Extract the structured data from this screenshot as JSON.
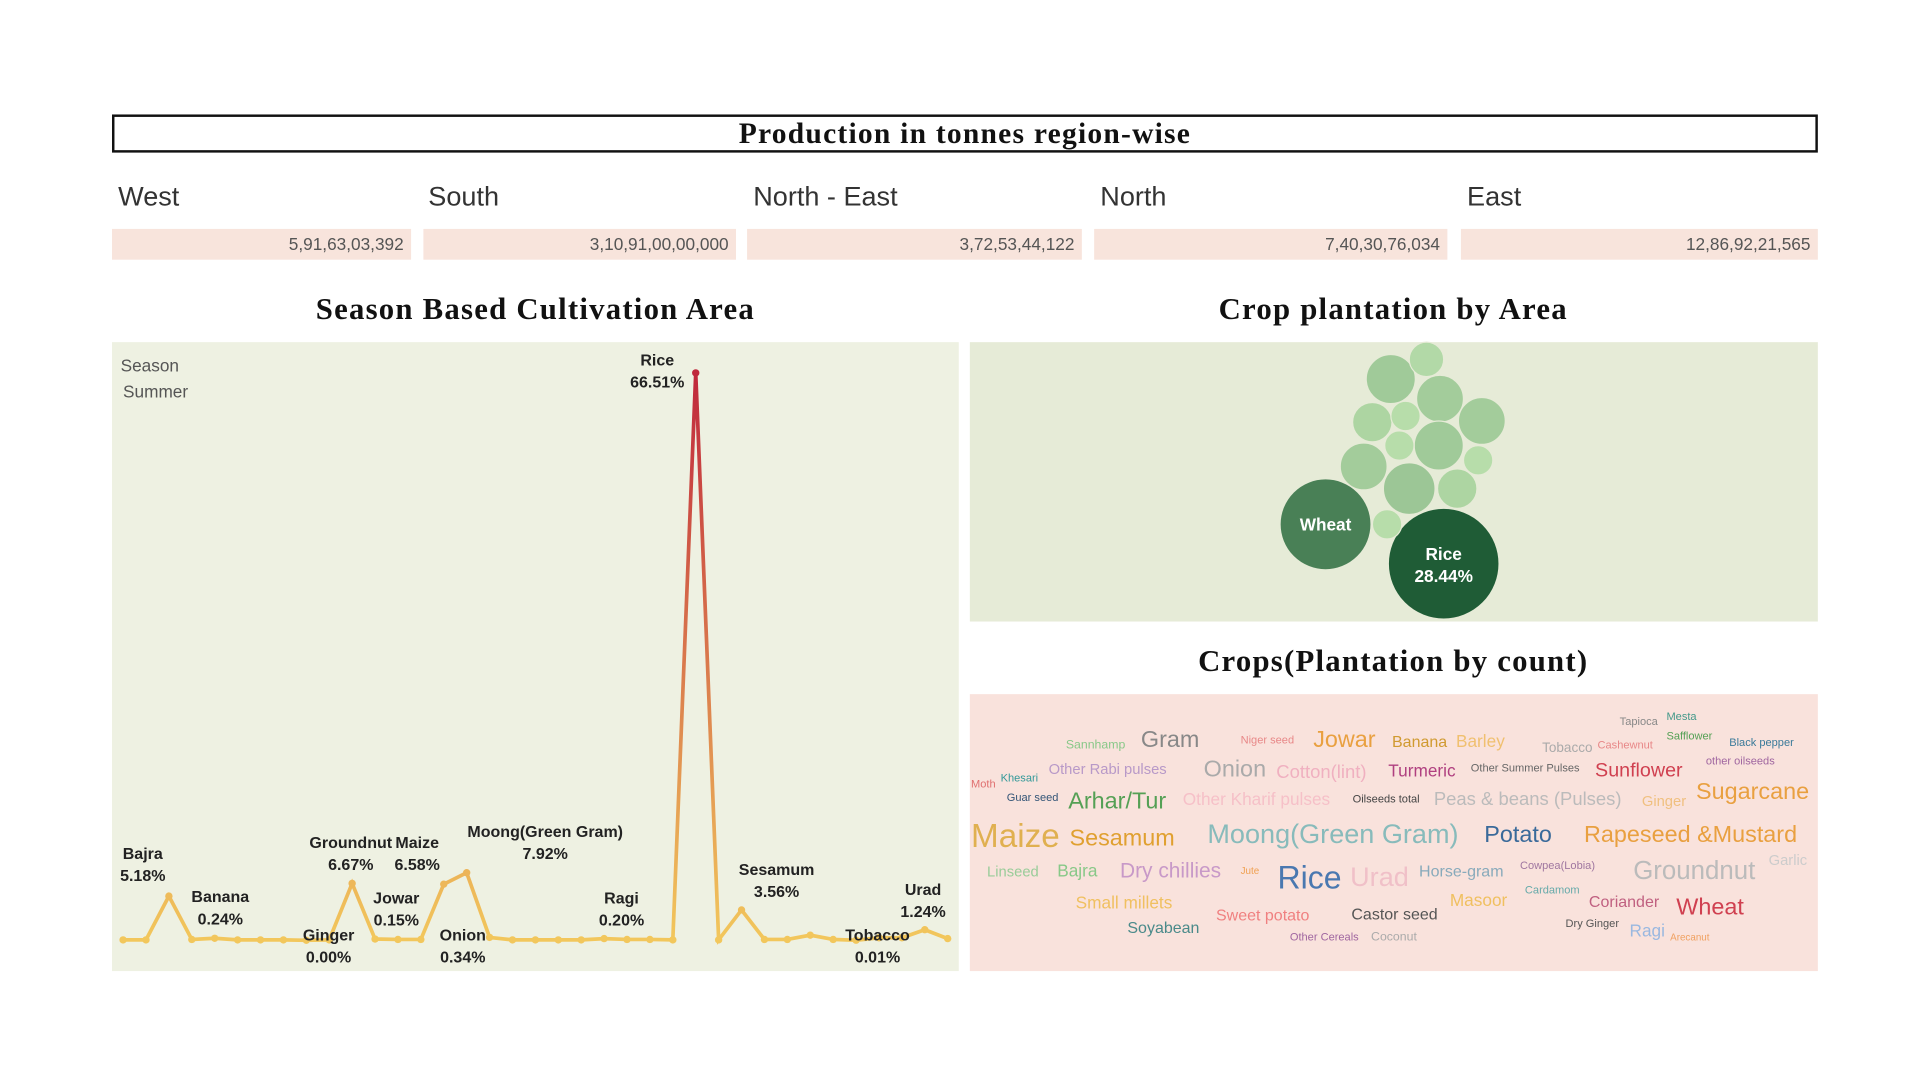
{
  "region_production": {
    "title": "Production in tonnes region-wise",
    "regions": [
      {
        "name": "West",
        "value": "5,91,63,03,392"
      },
      {
        "name": "South",
        "value": "3,10,91,00,00,000"
      },
      {
        "name": "North - East",
        "value": "3,72,53,44,122"
      },
      {
        "name": "North",
        "value": "7,40,30,76,034"
      },
      {
        "name": "East",
        "value": "12,86,92,21,565"
      }
    ]
  },
  "chart_data": [
    {
      "type": "line",
      "title": "Season Based Cultivation Area",
      "filter_label": "Season",
      "filter_value": "Summer",
      "categories": [
        null,
        null,
        "Bajra",
        null,
        "Banana",
        null,
        null,
        null,
        "Ginger",
        null,
        "Groundnut",
        "Jowar",
        null,
        null,
        "Maize",
        "Moong(Green Gram)",
        "Onion",
        null,
        null,
        null,
        null,
        "Ragi",
        null,
        null,
        null,
        "Rice",
        null,
        "Sesamum",
        null,
        null,
        null,
        null,
        "Tobacco",
        null,
        null,
        "Urad",
        null
      ],
      "values": [
        0.05,
        0.05,
        5.18,
        0.1,
        0.24,
        0.05,
        0.05,
        0.05,
        0.0,
        0.05,
        6.67,
        0.15,
        0.1,
        0.1,
        6.58,
        7.92,
        0.34,
        0.05,
        0.05,
        0.05,
        0.05,
        0.2,
        0.1,
        0.1,
        0.05,
        66.51,
        0.05,
        3.56,
        0.1,
        0.1,
        0.6,
        0.1,
        0.01,
        0.3,
        0.3,
        1.24,
        0.2
      ],
      "value_labels": [
        null,
        null,
        "5.18%",
        null,
        "0.24%",
        null,
        null,
        null,
        "0.00%",
        null,
        "6.67%",
        "0.15%",
        null,
        null,
        "6.58%",
        "7.92%",
        "0.34%",
        null,
        null,
        null,
        null,
        "0.20%",
        null,
        null,
        null,
        "66.51%",
        null,
        "3.56%",
        null,
        null,
        null,
        null,
        "0.01%",
        null,
        null,
        "1.24%",
        null
      ],
      "color_low": "#f2c75c",
      "color_high": "#c0283c"
    },
    {
      "type": "bubble",
      "title": "Crop plantation by Area",
      "categories": [
        "Rice",
        "Wheat",
        null,
        null,
        null,
        null,
        null,
        null,
        null,
        null,
        null,
        null,
        null,
        null,
        null
      ],
      "values": [
        28.44,
        19.2,
        5.6,
        2.75,
        5.1,
        5.1,
        3.6,
        2.0,
        5.6,
        5.1,
        2.0,
        6.2,
        3.6,
        2.0,
        2.0
      ],
      "value_labels": [
        "28.44%",
        null,
        null,
        null,
        null,
        null,
        null,
        null,
        null,
        null,
        null,
        null,
        null,
        null,
        null
      ],
      "color_low": "#c4e8b4",
      "color_high": "#1f5c36"
    }
  ],
  "word_cloud": {
    "title": "Crops(Plantation by count)",
    "words": [
      {
        "text": "Tapioca",
        "color": "#888888"
      },
      {
        "text": "Mesta",
        "color": "#44998a"
      },
      {
        "text": "Safflower",
        "color": "#55a055"
      },
      {
        "text": "Black pepper",
        "color": "#3a7a9a"
      },
      {
        "text": "Sannhamp",
        "color": "#88c888"
      },
      {
        "text": "Gram",
        "color": "#888888"
      },
      {
        "text": "Niger seed",
        "color": "#e88888"
      },
      {
        "text": "Jowar",
        "color": "#e9a040"
      },
      {
        "text": "Banana",
        "color": "#d09a30"
      },
      {
        "text": "Barley",
        "color": "#f0c070"
      },
      {
        "text": "Tobacco",
        "color": "#aaaaaa"
      },
      {
        "text": "Cashewnut",
        "color": "#e88888"
      },
      {
        "text": "other oilseeds",
        "color": "#a066a0"
      },
      {
        "text": "Moth",
        "color": "#e07070"
      },
      {
        "text": "Khesari",
        "color": "#339999"
      },
      {
        "text": "Other Rabi pulses",
        "color": "#b899c8"
      },
      {
        "text": "Onion",
        "color": "#aaaaaa"
      },
      {
        "text": "Cotton(lint)",
        "color": "#f0b0c0"
      },
      {
        "text": "Turmeric",
        "color": "#b04080"
      },
      {
        "text": "Other Summer Pulses",
        "color": "#666666"
      },
      {
        "text": "Sunflower",
        "color": "#d04050"
      },
      {
        "text": "Sugarcane",
        "color": "#e9a040"
      },
      {
        "text": "Guar seed",
        "color": "#335577"
      },
      {
        "text": "Arhar/Tur",
        "color": "#55a055"
      },
      {
        "text": "Other Kharif pulses",
        "color": "#f6c0c8"
      },
      {
        "text": "Oilseeds total",
        "color": "#444444"
      },
      {
        "text": "Peas & beans (Pulses)",
        "color": "#bbbbbb"
      },
      {
        "text": "Ginger",
        "color": "#f0c080"
      },
      {
        "text": "Maize",
        "color": "#e0b050"
      },
      {
        "text": "Sesamum",
        "color": "#e0a030"
      },
      {
        "text": "Moong(Green Gram)",
        "color": "#88bbbb"
      },
      {
        "text": "Potato",
        "color": "#3a6a9a"
      },
      {
        "text": "Rapeseed &Mustard",
        "color": "#e9a040"
      },
      {
        "text": "Linseed",
        "color": "#99cc99"
      },
      {
        "text": "Bajra",
        "color": "#88c888"
      },
      {
        "text": "Dry chillies",
        "color": "#c899c8"
      },
      {
        "text": "Jute",
        "color": "#f0a050"
      },
      {
        "text": "Rice",
        "color": "#4a78b0"
      },
      {
        "text": "Urad",
        "color": "#f0c0c8"
      },
      {
        "text": "Horse-gram",
        "color": "#88aabb"
      },
      {
        "text": "Cowpea(Lobia)",
        "color": "#a077a0"
      },
      {
        "text": "Groundnut",
        "color": "#bbbbbb"
      },
      {
        "text": "Garlic",
        "color": "#cccccc"
      },
      {
        "text": "Cardamom",
        "color": "#66aaaa"
      },
      {
        "text": "Small millets",
        "color": "#f0c060"
      },
      {
        "text": "Masoor",
        "color": "#f0c060"
      },
      {
        "text": "Coriander",
        "color": "#c06080"
      },
      {
        "text": "Wheat",
        "color": "#d04050"
      },
      {
        "text": "Sweet potato",
        "color": "#f08080"
      },
      {
        "text": "Castor seed",
        "color": "#555555"
      },
      {
        "text": "Soyabean",
        "color": "#4a8a8a"
      },
      {
        "text": "Dry Ginger",
        "color": "#555555"
      },
      {
        "text": "Ragi",
        "color": "#9ab8e0"
      },
      {
        "text": "Other Cereals",
        "color": "#a066a0"
      },
      {
        "text": "Coconut",
        "color": "#aaaaaa"
      },
      {
        "text": "Arecanut",
        "color": "#f0a060"
      }
    ]
  }
}
